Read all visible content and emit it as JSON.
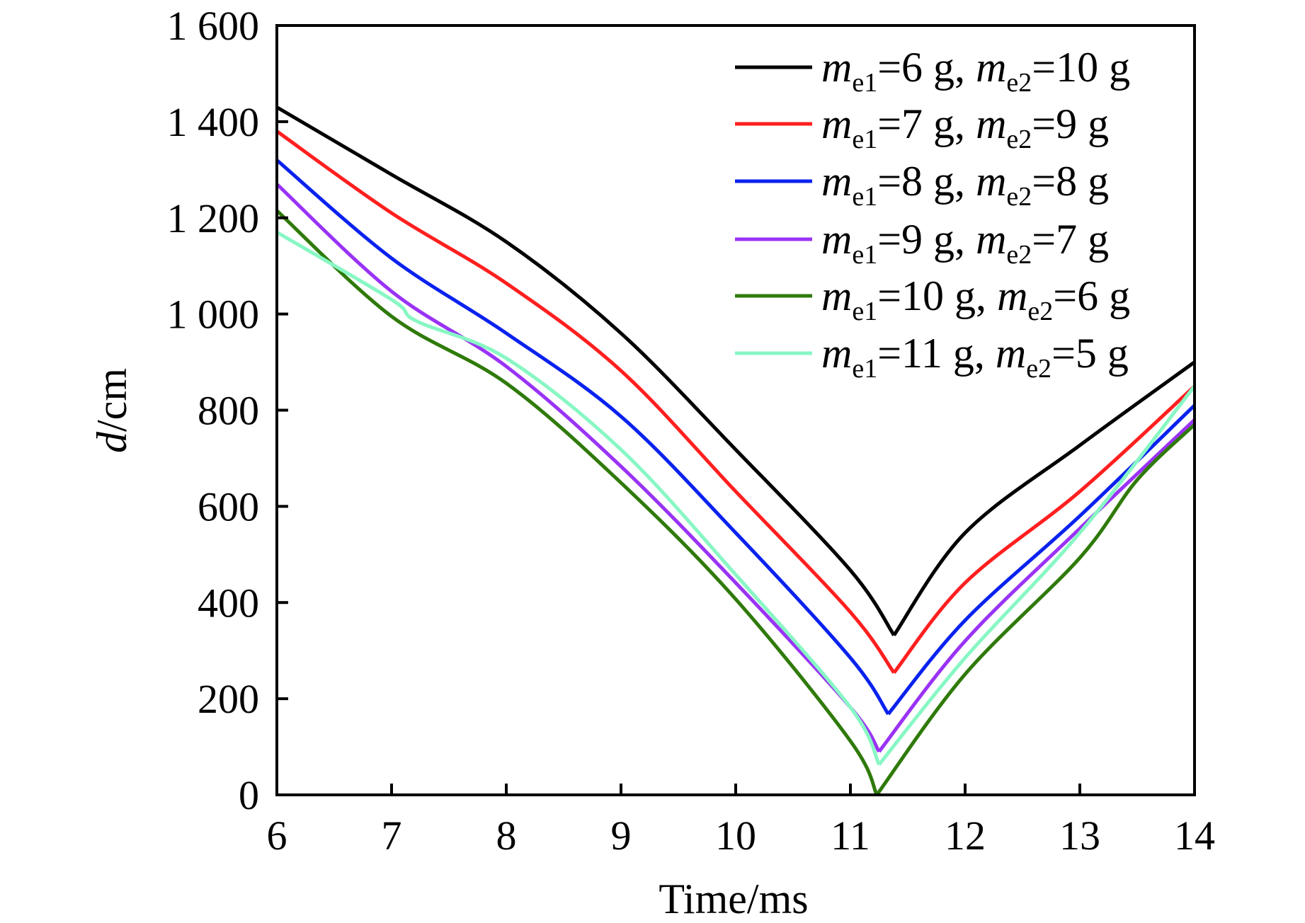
{
  "chart_data": {
    "type": "line",
    "xlabel": "Time/ms",
    "ylabel_symbol": "d",
    "ylabel_unit": "/cm",
    "xlim": [
      6,
      14
    ],
    "ylim": [
      0,
      1600
    ],
    "xticks": [
      "6",
      "7",
      "8",
      "9",
      "10",
      "11",
      "12",
      "13",
      "14"
    ],
    "yticks": [
      "0",
      "200",
      "400",
      "600",
      "800",
      "1 000",
      "1 200",
      "1 400",
      "1 600"
    ],
    "grid": false,
    "legend_position": "top-right",
    "series": [
      {
        "name": "me1=6 g, me2=10 g",
        "legend": {
          "m1": "m",
          "s1": "e1",
          "v1": "=6 g, ",
          "m2": "m",
          "s2": "e2",
          "v2": "=10 g"
        },
        "color": "#000000",
        "x": [
          6,
          7,
          8,
          9,
          10,
          11,
          11.38,
          12,
          13,
          14
        ],
        "y": [
          1430,
          1290,
          1150,
          960,
          718,
          467,
          332,
          545,
          727,
          900
        ]
      },
      {
        "name": "me1=7 g, me2=9 g",
        "legend": {
          "m1": "m",
          "s1": "e1",
          "v1": "=7 g, ",
          "m2": "m",
          "s2": "e2",
          "v2": "=9 g"
        },
        "color": "#ff1f1f",
        "x": [
          6,
          7,
          8,
          9,
          10,
          11,
          11.38,
          12,
          13,
          14
        ],
        "y": [
          1380,
          1210,
          1064,
          882,
          631,
          380,
          254,
          441,
          631,
          850
        ]
      },
      {
        "name": "me1=8 g, me2=8 g",
        "legend": {
          "m1": "m",
          "s1": "e1",
          "v1": "=8 g, ",
          "m2": "m",
          "s2": "e2",
          "v2": "=8 g"
        },
        "color": "#0a22ee",
        "x": [
          6,
          7,
          8,
          9,
          10,
          11,
          11.33,
          12,
          13,
          14
        ],
        "y": [
          1320,
          1116,
          960,
          787,
          545,
          285,
          168,
          363,
          580,
          810
        ]
      },
      {
        "name": "me1=9 g, me2=7 g",
        "legend": {
          "m1": "m",
          "s1": "e1",
          "v1": "=9 g, ",
          "m2": "m",
          "s2": "e2",
          "v2": "=7 g"
        },
        "color": "#9a33f5",
        "x": [
          6,
          7,
          8,
          9,
          10,
          11,
          11.25,
          12,
          13,
          14
        ],
        "y": [
          1270,
          1047,
          891,
          683,
          441,
          182,
          90,
          320,
          554,
          780
        ]
      },
      {
        "name": "me1=10 g, me2=6 g",
        "legend": {
          "m1": "m",
          "s1": "e1",
          "v1": "=10 g, ",
          "m2": "m",
          "s2": "e2",
          "v2": "=6 g"
        },
        "color": "#2f7a0a",
        "x": [
          6,
          7,
          8,
          9,
          10,
          11,
          11.23,
          12,
          13,
          13.5,
          14
        ],
        "y": [
          1215,
          995,
          856,
          649,
          407,
          112,
          0,
          251,
          493,
          655,
          770
        ]
      },
      {
        "name": "me1=11 g, me2=5 g",
        "legend": {
          "m1": "m",
          "s1": "e1",
          "v1": "=11 g, ",
          "m2": "m",
          "s2": "e2",
          "v2": "=5 g"
        },
        "color": "#88f7c4",
        "x": [
          6,
          7,
          7.22,
          8,
          9,
          10,
          11,
          11.25,
          12,
          13,
          14
        ],
        "y": [
          1170,
          1030,
          985,
          908,
          718,
          458,
          182,
          63,
          285,
          545,
          850
        ]
      }
    ]
  }
}
